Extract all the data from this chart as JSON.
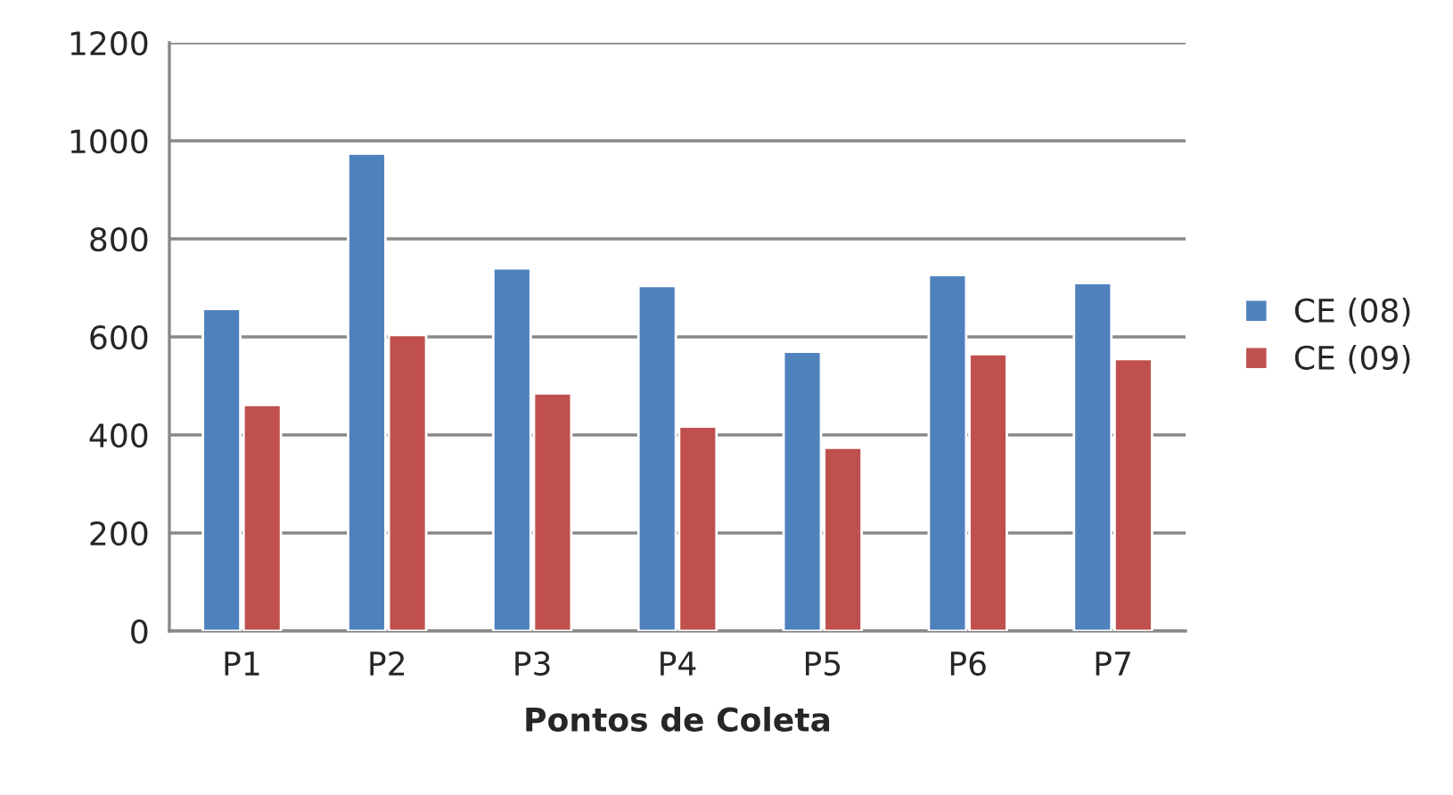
{
  "chart_data": {
    "type": "bar",
    "xlabel": "Pontos de Coleta",
    "categories": [
      "P1",
      "P2",
      "P3",
      "P4",
      "P5",
      "P6",
      "P7"
    ],
    "series": [
      {
        "name": "CE (08)",
        "color": "#4f81bd",
        "values": [
          657,
          974,
          740,
          704,
          570,
          726,
          710
        ]
      },
      {
        "name": "CE (09)",
        "color": "#c0504d",
        "values": [
          461,
          604,
          485,
          417,
          374,
          565,
          555
        ]
      }
    ],
    "ylim": [
      0,
      1200
    ],
    "yticks": [
      0,
      200,
      400,
      600,
      800,
      1000,
      1200
    ],
    "grid": "y",
    "legend": "right"
  }
}
